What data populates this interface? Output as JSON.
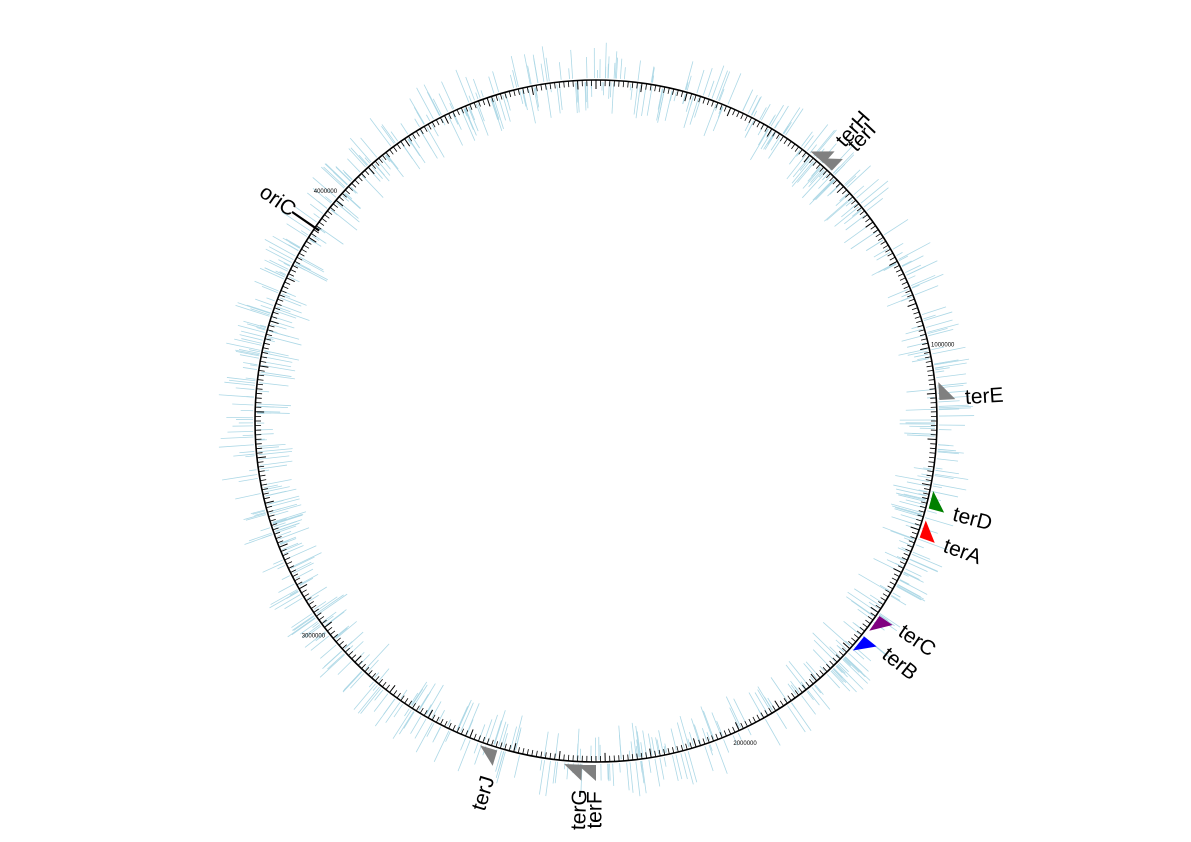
{
  "chart_data": {
    "type": "circular-genome-map",
    "genome_length": 4640000,
    "direction": "clockwise",
    "start_at": "top",
    "scale_labels": [
      {
        "position": 1000000,
        "text": "1000000"
      },
      {
        "position": 2000000,
        "text": "2000000"
      },
      {
        "position": 3000000,
        "text": "3000000"
      },
      {
        "position": 4000000,
        "text": "4000000"
      }
    ],
    "origin": {
      "name": "oriC",
      "position": 3925000
    },
    "ter_sites": [
      {
        "name": "terH",
        "position": 535000,
        "color": "#808080",
        "strand": "-"
      },
      {
        "name": "terI",
        "position": 558000,
        "color": "#808080",
        "strand": "-"
      },
      {
        "name": "terE",
        "position": 1115000,
        "color": "#808080",
        "strand": "-"
      },
      {
        "name": "terD",
        "position": 1350000,
        "color": "#008000",
        "strand": "-"
      },
      {
        "name": "terA",
        "position": 1415000,
        "color": "#ff0000",
        "strand": "-"
      },
      {
        "name": "terC",
        "position": 1605000,
        "color": "#800080",
        "strand": "+"
      },
      {
        "name": "terB",
        "position": 1660000,
        "color": "#0000ff",
        "strand": "+"
      },
      {
        "name": "terF",
        "position": 2320000,
        "color": "#808080",
        "strand": "+"
      },
      {
        "name": "terG",
        "position": 2350000,
        "color": "#808080",
        "strand": "+"
      },
      {
        "name": "terJ",
        "position": 2535000,
        "color": "#808080",
        "strand": "+"
      }
    ],
    "feature_track": {
      "color": "#add8e6",
      "count": 900
    }
  },
  "colors": {
    "backbone": "#000000",
    "features": "#add8e6",
    "background": "#ffffff"
  }
}
